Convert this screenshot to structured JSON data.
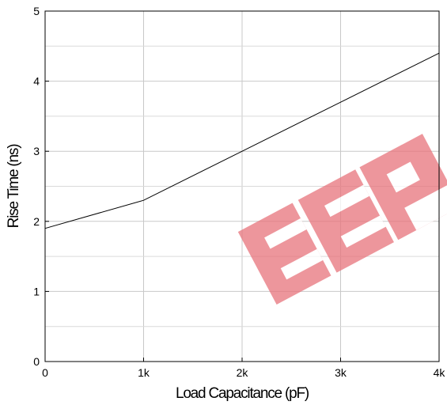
{
  "chart_data": {
    "type": "line",
    "title": "",
    "xlabel": "Load Capacitance (pF)",
    "ylabel": "Rise Time (ns)",
    "xlim": [
      0,
      4000
    ],
    "ylim": [
      0,
      5
    ],
    "grid": true,
    "x_ticks": [
      {
        "value": 0,
        "label": "0"
      },
      {
        "value": 1000,
        "label": "1k"
      },
      {
        "value": 2000,
        "label": "2k"
      },
      {
        "value": 3000,
        "label": "3k"
      },
      {
        "value": 4000,
        "label": "4k"
      }
    ],
    "y_ticks": [
      {
        "value": 0,
        "label": "0"
      },
      {
        "value": 1,
        "label": "1"
      },
      {
        "value": 2,
        "label": "2"
      },
      {
        "value": 3,
        "label": "3"
      },
      {
        "value": 4,
        "label": "4"
      },
      {
        "value": 5,
        "label": "5"
      }
    ],
    "y_minor_ticks": [
      0.5,
      1.5,
      2.5,
      3.5,
      4.5
    ],
    "series": [
      {
        "color": "#000000",
        "points": [
          {
            "x": 0,
            "y": 1.9
          },
          {
            "x": 1000,
            "y": 2.3
          },
          {
            "x": 2000,
            "y": 3.0
          },
          {
            "x": 3000,
            "y": 3.7
          },
          {
            "x": 4000,
            "y": 4.4
          }
        ]
      }
    ]
  },
  "watermark": {
    "text": "EEP",
    "color": "#e8747c"
  }
}
